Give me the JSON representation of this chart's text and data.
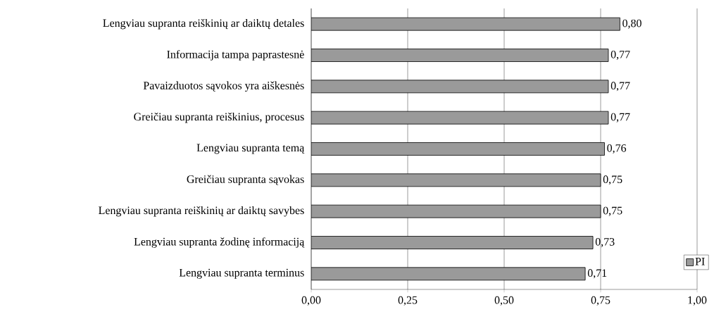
{
  "chart_data": {
    "type": "bar",
    "orientation": "horizontal",
    "categories": [
      "Lengviau supranta reiškinių ar daiktų detales",
      "Informacija tampa  paprastesnė",
      "Pavaizduotos sąvokos yra aiškesnės",
      "Greičiau supranta reiškinius, procesus",
      "Lengviau supranta temą",
      "Greičiau supranta sąvokas",
      "Lengviau supranta reiškinių ar daiktų savybes",
      "Lengviau supranta žodinę informaciją",
      "Lengviau supranta terminus"
    ],
    "series": [
      {
        "name": "PI",
        "color": "#9a9a9a",
        "values": [
          0.8,
          0.77,
          0.77,
          0.77,
          0.76,
          0.75,
          0.75,
          0.73,
          0.71
        ],
        "value_labels": [
          "0,80",
          "0,77",
          "0,77",
          "0,77",
          "0,76",
          "0,75",
          "0,75",
          "0,73",
          "0,71"
        ]
      }
    ],
    "xlim": [
      0,
      1
    ],
    "xticks": [
      {
        "value": 0,
        "label": "0,00"
      },
      {
        "value": 0.25,
        "label": "0,25"
      },
      {
        "value": 0.5,
        "label": "0,50"
      },
      {
        "value": 0.75,
        "label": "0,75"
      },
      {
        "value": 1,
        "label": "1,00"
      }
    ],
    "grid": "x",
    "legend": "bottom right"
  }
}
